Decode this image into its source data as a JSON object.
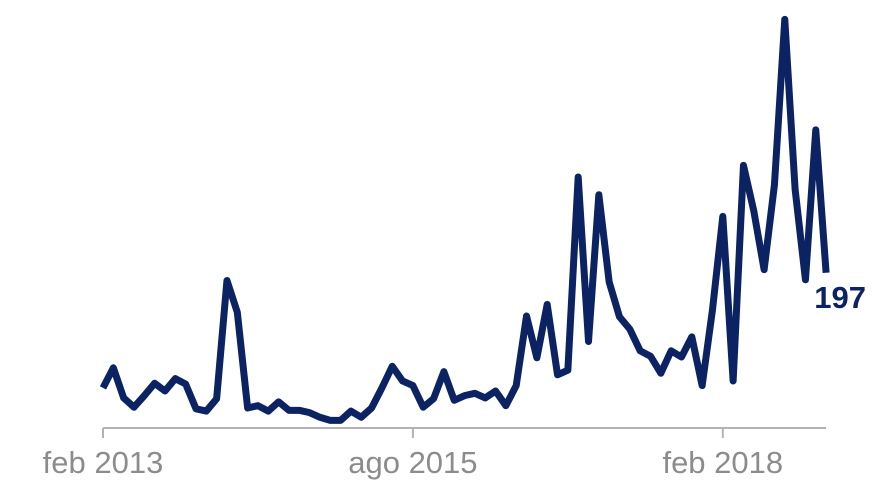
{
  "chart_data": {
    "type": "line",
    "categories": [
      "feb 2013",
      null,
      null,
      null,
      null,
      null,
      null,
      null,
      null,
      null,
      null,
      null,
      null,
      null,
      null,
      null,
      null,
      null,
      null,
      null,
      null,
      null,
      null,
      null,
      null,
      null,
      null,
      null,
      null,
      null,
      "ago 2015",
      null,
      null,
      null,
      null,
      null,
      null,
      null,
      null,
      null,
      null,
      null,
      null,
      null,
      null,
      null,
      null,
      null,
      null,
      null,
      null,
      null,
      null,
      null,
      null,
      null,
      null,
      null,
      null,
      null,
      "feb 2018",
      null,
      null,
      null,
      null,
      null,
      null,
      null,
      null,
      null,
      null
    ],
    "values": [
      48,
      74,
      35,
      23,
      38,
      54,
      44,
      60,
      53,
      21,
      18,
      34,
      187,
      146,
      22,
      25,
      18,
      30,
      19,
      19,
      16,
      10,
      6,
      6,
      18,
      10,
      22,
      48,
      76,
      57,
      51,
      23,
      34,
      69,
      32,
      38,
      41,
      35,
      44,
      25,
      51,
      141,
      87,
      156,
      65,
      71,
      321,
      108,
      298,
      185,
      140,
      124,
      96,
      89,
      67,
      96,
      88,
      114,
      51,
      149,
      270,
      57,
      336,
      277,
      201,
      311,
      525,
      305,
      188,
      382,
      197
    ],
    "color": "#0b2362",
    "ylim": [
      0,
      550
    ]
  }
}
